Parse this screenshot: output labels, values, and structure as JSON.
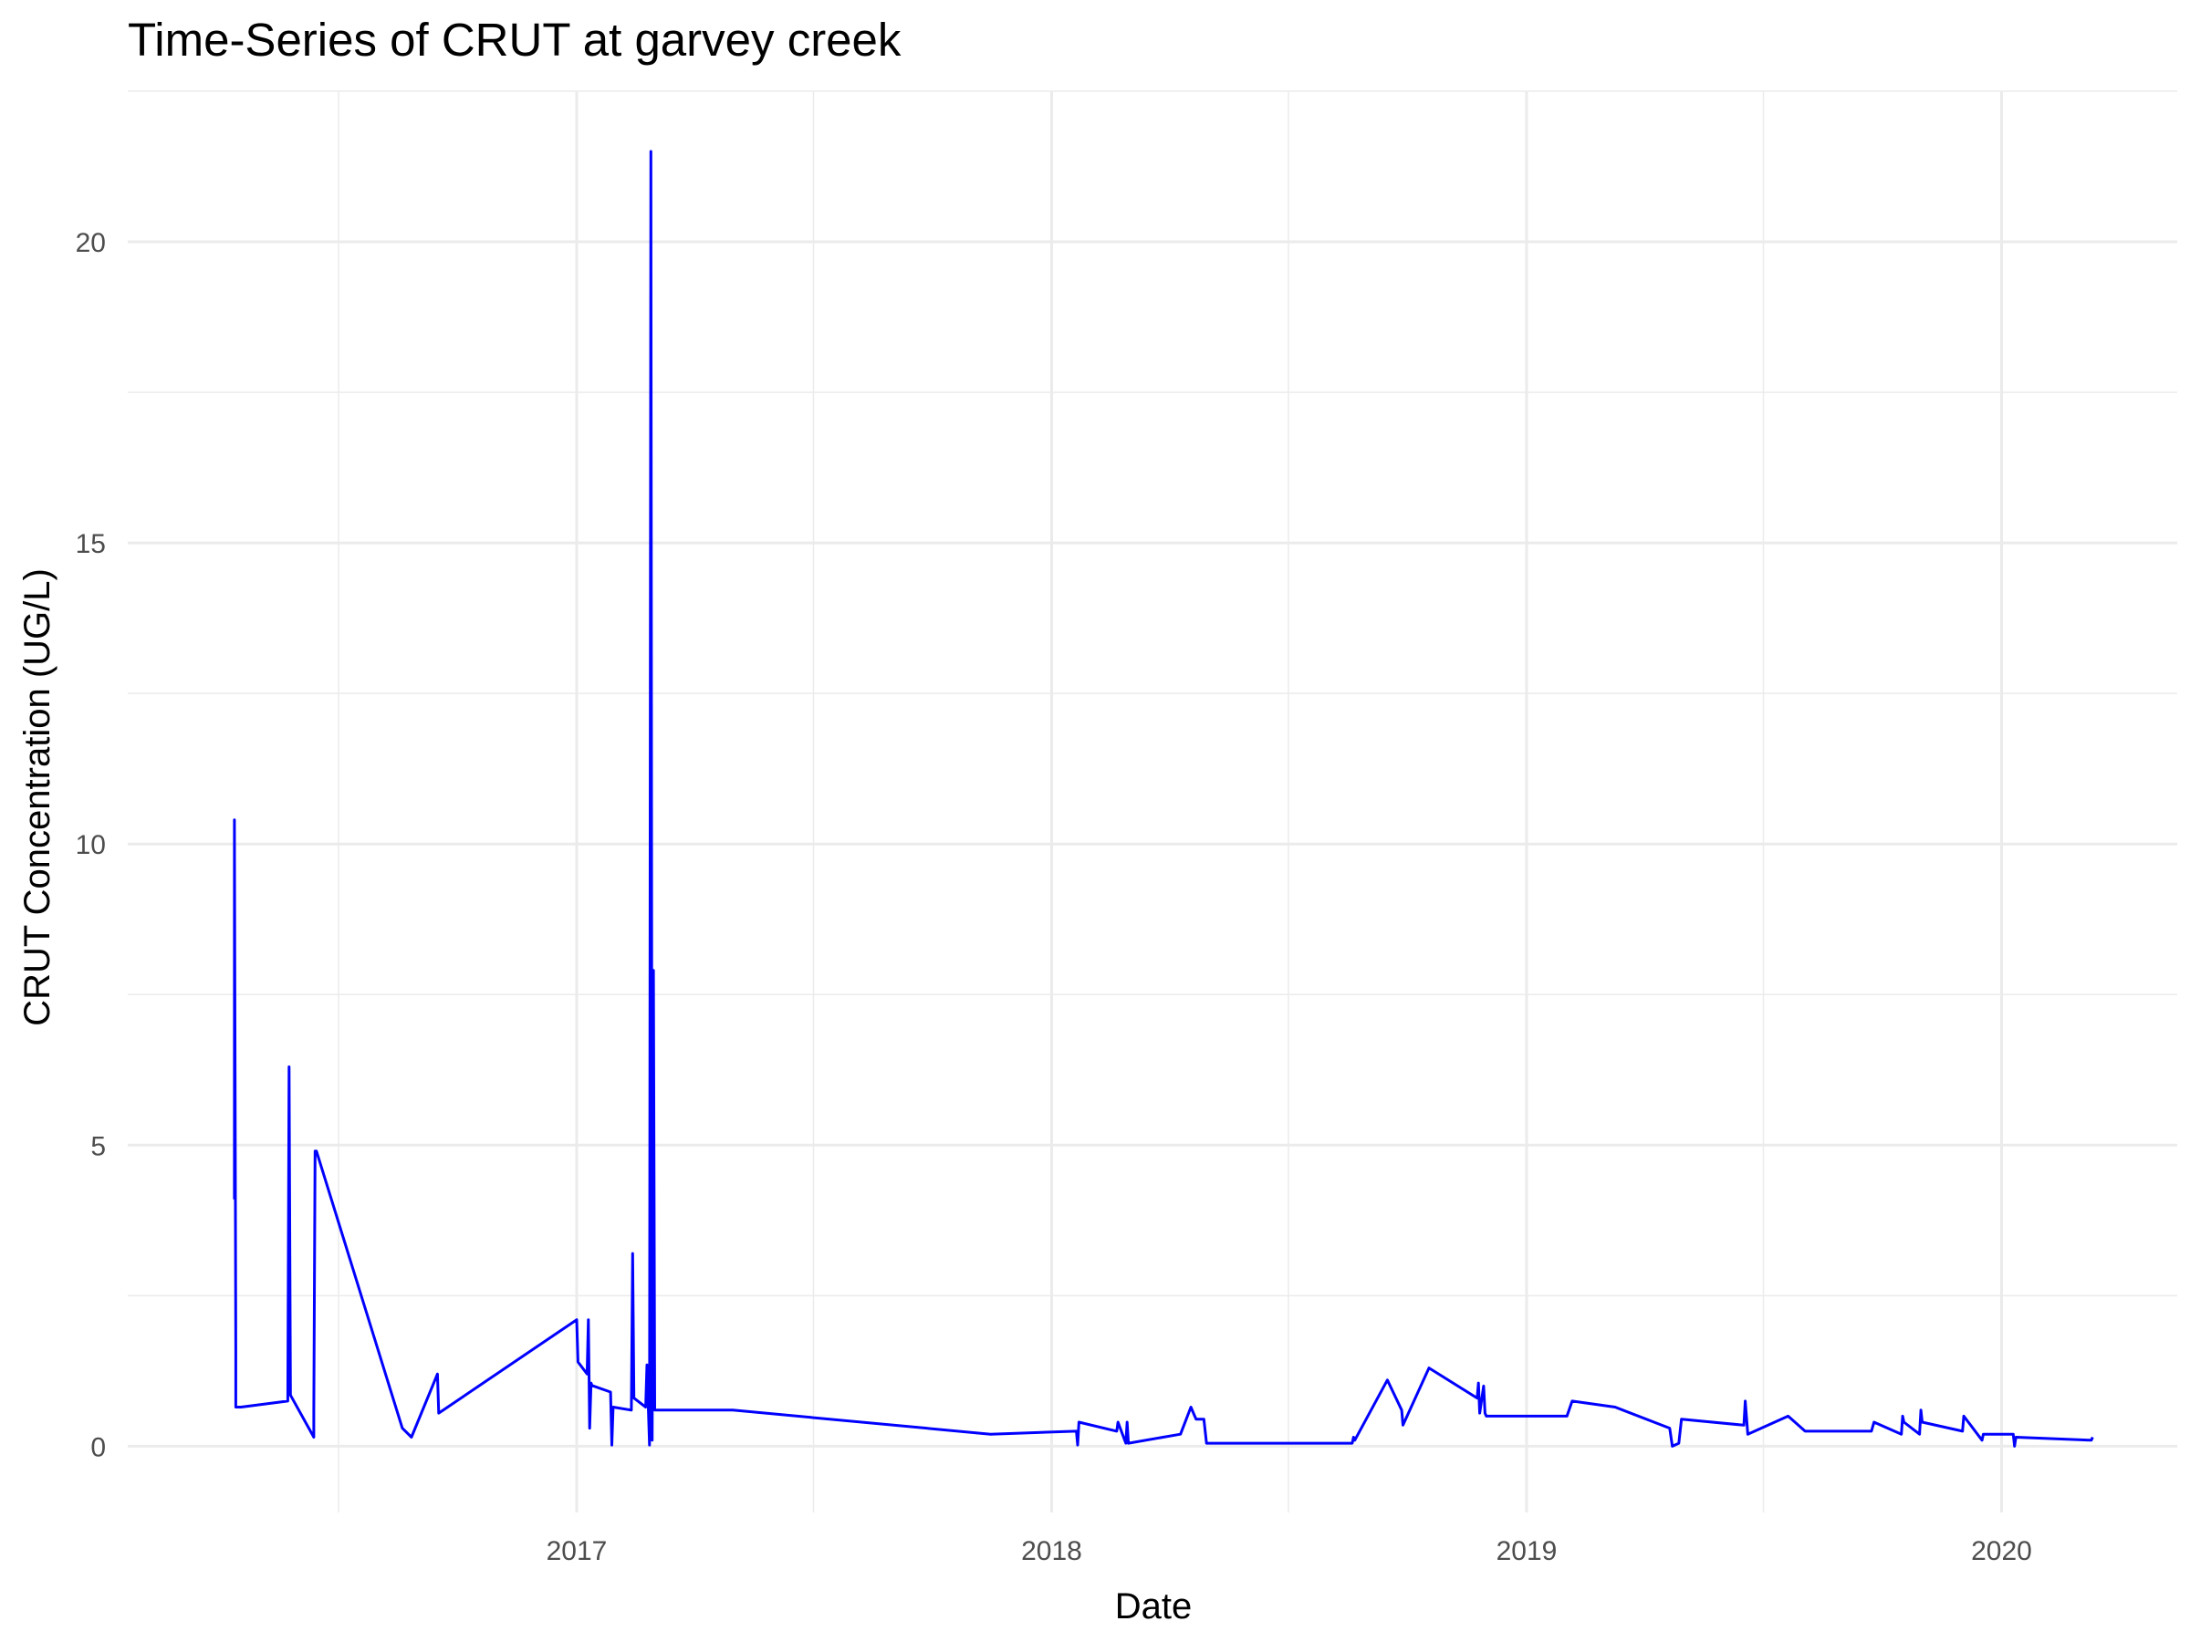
{
  "chart_data": {
    "type": "line",
    "title": "Time-Series of CRUT at garvey creek",
    "xlabel": "Date",
    "ylabel": "CRUT Concentration (UG/L)",
    "x_ticks": [
      "2017",
      "2018",
      "2019",
      "2020"
    ],
    "y_ticks": [
      0,
      5,
      10,
      15,
      20
    ],
    "xlim": [
      "2016-01-22",
      "2020-05-15"
    ],
    "ylim": [
      -1.1,
      22.5
    ],
    "grid": true,
    "line_color": "#0000FF",
    "series": [
      {
        "x": [
          "2016-04-13",
          "2016-04-13",
          "2016-04-14",
          "2016-04-14",
          "2016-04-15",
          "2016-04-16",
          "2016-04-18",
          "2016-05-24",
          "2016-05-25",
          "2016-05-26",
          "2016-06-13",
          "2016-06-13",
          "2016-06-14",
          "2016-06-15",
          "2016-08-20",
          "2016-08-27",
          "2016-09-16",
          "2016-09-17",
          "2017-01-01",
          "2017-01-02",
          "2017-01-09",
          "2017-01-10",
          "2017-01-11",
          "2017-01-12",
          "2017-01-13",
          "2017-01-14",
          "2017-01-27",
          "2017-01-28",
          "2017-01-29",
          "2017-02-12",
          "2017-02-13",
          "2017-02-14",
          "2017-02-23",
          "2017-02-24",
          "2017-02-26",
          "2017-02-27",
          "2017-02-28",
          "2017-03-01",
          "2017-03-02",
          "2017-03-03",
          "2017-03-05",
          "2017-05-01",
          "2017-11-15",
          "2018-01-20",
          "2018-01-21",
          "2018-01-22",
          "2018-02-20",
          "2018-02-21",
          "2018-02-27",
          "2018-02-28",
          "2018-03-01",
          "2018-04-10",
          "2018-04-18",
          "2018-04-21",
          "2018-04-22",
          "2018-04-28",
          "2018-04-30",
          "2018-05-01",
          "2018-08-20",
          "2018-08-21",
          "2018-08-22",
          "2018-09-16",
          "2018-09-27",
          "2018-09-28",
          "2018-10-18",
          "2018-11-24",
          "2018-11-25",
          "2018-11-26",
          "2018-11-29",
          "2018-11-30",
          "2018-12-01",
          "2019-02-01",
          "2019-02-05",
          "2019-03-10",
          "2019-04-21",
          "2019-04-23",
          "2019-04-28",
          "2019-04-30",
          "2019-06-17",
          "2019-06-18",
          "2019-06-20",
          "2019-07-21",
          "2019-08-03",
          "2019-09-23",
          "2019-09-25",
          "2019-10-16",
          "2019-10-17",
          "2019-10-18",
          "2019-10-30",
          "2019-10-31",
          "2019-11-01",
          "2019-12-02",
          "2019-12-03",
          "2019-12-17",
          "2019-12-18",
          "2020-01-10",
          "2020-01-11",
          "2020-01-12",
          "2020-03-10",
          "2020-03-11"
        ],
        "values": [
          4.1,
          10.4,
          1.6,
          0.65,
          0.65,
          0.65,
          0.65,
          0.75,
          6.3,
          0.85,
          0.15,
          0.6,
          4.9,
          4.9,
          0.3,
          0.15,
          1.2,
          0.55,
          2.1,
          1.4,
          1.2,
          2.1,
          0.3,
          1.05,
          1.0,
          1.0,
          0.9,
          0.02,
          0.65,
          0.6,
          3.2,
          0.8,
          0.65,
          1.35,
          0.02,
          21.5,
          0.1,
          7.9,
          0.6,
          0.6,
          0.6,
          0.6,
          0.2,
          0.25,
          0.02,
          0.4,
          0.25,
          0.4,
          0.05,
          0.4,
          0.05,
          0.2,
          0.65,
          0.5,
          0.45,
          0.45,
          0.05,
          0.05,
          0.05,
          0.15,
          0.1,
          1.1,
          0.6,
          0.35,
          1.3,
          0.8,
          1.05,
          0.55,
          1.0,
          0.55,
          0.5,
          0.5,
          0.75,
          0.65,
          0.3,
          0.0,
          0.05,
          0.45,
          0.35,
          0.75,
          0.2,
          0.5,
          0.25,
          0.25,
          0.4,
          0.2,
          0.5,
          0.4,
          0.2,
          0.6,
          0.4,
          0.25,
          0.5,
          0.1,
          0.2,
          0.2,
          0.0,
          0.15,
          0.1,
          0.15
        ]
      }
    ]
  }
}
